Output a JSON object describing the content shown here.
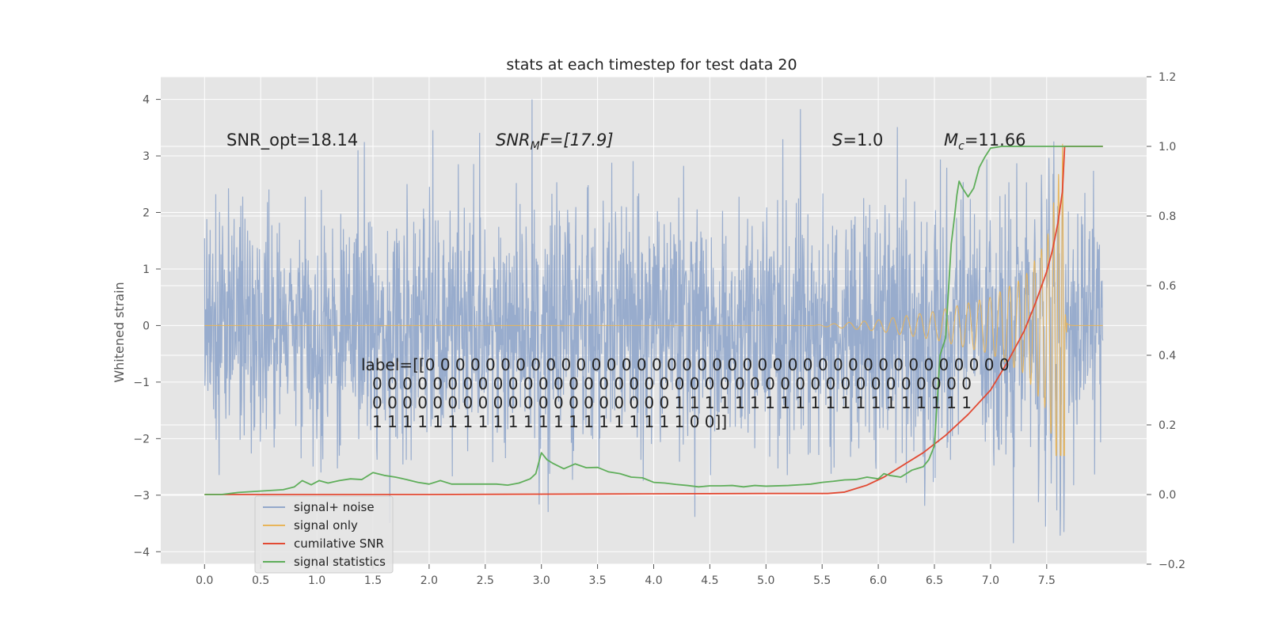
{
  "chart_data": {
    "type": "line",
    "title": "stats at each timestep for test data 20",
    "xlabel": "",
    "ylabel": "Whitened strain",
    "xlim": [
      -0.39,
      8.39
    ],
    "ylim": [
      -4.22,
      4.4
    ],
    "y2lim": [
      -0.2,
      1.2
    ],
    "x_ticks": [
      "0.0",
      "0.5",
      "1.0",
      "1.5",
      "2.0",
      "2.5",
      "3.0",
      "3.5",
      "4.0",
      "4.5",
      "5.0",
      "5.5",
      "6.0",
      "6.5",
      "7.0",
      "7.5"
    ],
    "y_ticks": [
      "4",
      "3",
      "2",
      "1",
      "0",
      "−1",
      "−2",
      "−3",
      "−4"
    ],
    "y2_ticks": [
      "1.2",
      "1.0",
      "0.8",
      "0.6",
      "0.4",
      "0.2",
      "0.0",
      "−0.2"
    ],
    "grid": true,
    "legend_position": "lower-left",
    "annotations": {
      "snr_opt": "SNR_opt=18.14",
      "snr_mf_main": "SNR",
      "snr_mf_sub": "M",
      "snr_mf_rest": "F=[17.9]",
      "s_var": "S",
      "s_rest": "=1.0",
      "mc_var": "M",
      "mc_sub": "c",
      "mc_rest": "=11.66",
      "label_lines": [
        "label=[[0 0 0 0 0 0 0 0 0 0 0 0 0 0 0 0 0 0 0 0 0 0 0 0 0 0 0 0 0 0 0 0 0 0 0 0 0 0 0",
        "0 0 0 0 0 0 0 0 0 0 0 0 0 0 0 0 0 0 0 0 0 0 0 0 0 0 0 0 0 0 0 0 0 0 0 0 0 0 0 0",
        "0 0 0 0 0 0 0 0 0 0 0 0 0 0 0 0 0 0 0 0 1 1 1 1 1 1 1 1 1 1 1 1 1 1 1 1 1 1 1 1",
        "1 1 1 1 1 1 1 1 1 1 1 1 1 1 1 1 1 1 1 1 1 0 0]]"
      ]
    },
    "series": [
      {
        "name": "signal+ noise",
        "color": "#94a9cb",
        "kind": "noise",
        "x_range": [
          0.0,
          8.0
        ],
        "approx_envelope_std": 1.1,
        "approx_peak_range": [
          -3.85,
          4.0
        ]
      },
      {
        "name": "signal only",
        "color": "#e8b55a",
        "kind": "chirp",
        "x_range": [
          0.0,
          8.0
        ],
        "onset_x": 5.4,
        "merger_x": 7.66,
        "amplitude_points": [
          [
            5.4,
            0.0
          ],
          [
            6.0,
            0.1
          ],
          [
            6.5,
            0.25
          ],
          [
            7.0,
            0.5
          ],
          [
            7.3,
            0.85
          ],
          [
            7.5,
            1.5
          ],
          [
            7.6,
            2.6
          ],
          [
            7.66,
            3.5
          ]
        ],
        "peak_min": -2.3
      },
      {
        "name": "cumilative SNR",
        "color": "#e24a33",
        "axis": "right",
        "x": [
          0.0,
          1.0,
          2.0,
          3.0,
          4.0,
          5.0,
          5.55,
          5.7,
          5.9,
          6.05,
          6.2,
          6.4,
          6.6,
          6.8,
          7.0,
          7.15,
          7.3,
          7.4,
          7.5,
          7.55,
          7.6,
          7.64,
          7.66,
          7.7,
          8.0
        ],
        "y": [
          0.0,
          0.0,
          0.0,
          0.001,
          0.002,
          0.003,
          0.003,
          0.007,
          0.027,
          0.05,
          0.08,
          0.12,
          0.17,
          0.23,
          0.3,
          0.38,
          0.47,
          0.55,
          0.64,
          0.7,
          0.78,
          0.87,
          1.0,
          1.0,
          1.0
        ]
      },
      {
        "name": "signal statistics",
        "color": "#5fae5a",
        "axis": "right",
        "x": [
          0.0,
          0.15,
          0.3,
          0.5,
          0.7,
          0.8,
          0.87,
          0.95,
          1.02,
          1.1,
          1.2,
          1.3,
          1.4,
          1.5,
          1.6,
          1.7,
          1.8,
          1.9,
          2.0,
          2.1,
          2.2,
          2.3,
          2.4,
          2.6,
          2.7,
          2.8,
          2.9,
          2.95,
          3.0,
          3.05,
          3.1,
          3.2,
          3.3,
          3.4,
          3.5,
          3.6,
          3.7,
          3.8,
          3.9,
          4.0,
          4.1,
          4.2,
          4.3,
          4.4,
          4.5,
          4.6,
          4.7,
          4.8,
          4.9,
          5.0,
          5.2,
          5.4,
          5.5,
          5.6,
          5.7,
          5.8,
          5.9,
          6.0,
          6.05,
          6.1,
          6.2,
          6.3,
          6.35,
          6.4,
          6.45,
          6.5,
          6.55,
          6.6,
          6.65,
          6.68,
          6.7,
          6.72,
          6.75,
          6.8,
          6.85,
          6.9,
          6.95,
          7.0,
          7.1,
          7.3,
          7.5,
          7.65,
          7.7,
          8.0
        ],
        "y": [
          0.0,
          0.0,
          0.006,
          0.01,
          0.014,
          0.022,
          0.04,
          0.028,
          0.04,
          0.033,
          0.04,
          0.045,
          0.043,
          0.063,
          0.055,
          0.05,
          0.043,
          0.035,
          0.03,
          0.04,
          0.03,
          0.03,
          0.03,
          0.03,
          0.027,
          0.033,
          0.045,
          0.06,
          0.12,
          0.1,
          0.09,
          0.074,
          0.088,
          0.077,
          0.078,
          0.065,
          0.06,
          0.05,
          0.048,
          0.035,
          0.033,
          0.029,
          0.026,
          0.022,
          0.025,
          0.025,
          0.026,
          0.022,
          0.026,
          0.024,
          0.026,
          0.03,
          0.035,
          0.038,
          0.042,
          0.043,
          0.05,
          0.045,
          0.06,
          0.055,
          0.05,
          0.07,
          0.075,
          0.08,
          0.1,
          0.14,
          0.4,
          0.45,
          0.72,
          0.8,
          0.86,
          0.9,
          0.88,
          0.855,
          0.88,
          0.94,
          0.97,
          0.995,
          1.0,
          1.0,
          1.0,
          1.0,
          1.0,
          1.0
        ]
      }
    ]
  }
}
